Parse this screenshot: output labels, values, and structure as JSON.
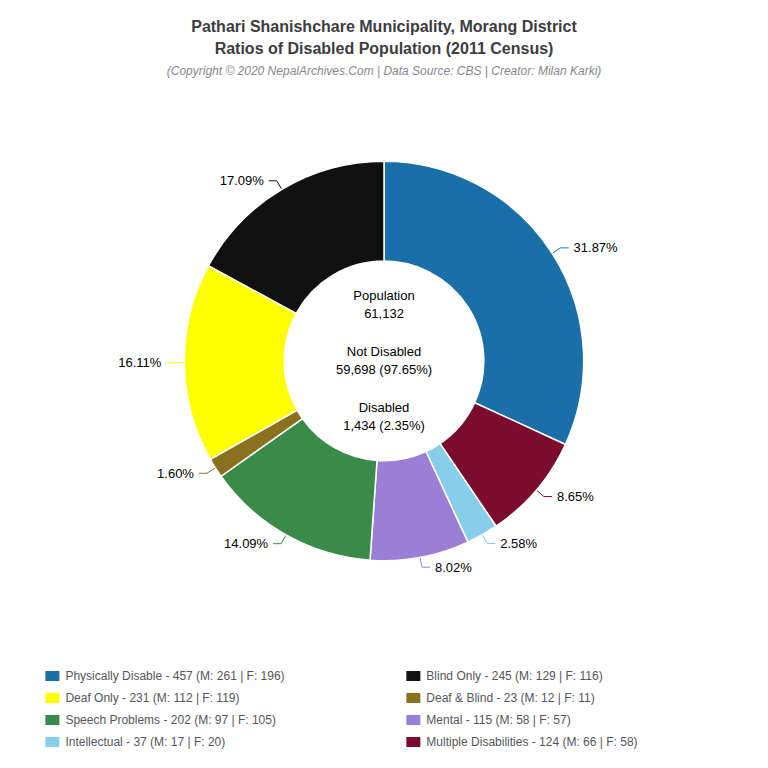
{
  "chart_data": {
    "type": "pie",
    "title": "Pathari Shanishchare Municipality, Morang District\nRatios of Disabled Population (2011 Census)",
    "subtitle": "(Copyright © 2020 NepalArchives.Com | Data Source: CBS | Creator: Milan Karki)",
    "categories": [
      "Physically Disable - 457 (M: 261 | F: 196)",
      "Multiple Disabilities - 124 (M: 66 | F: 58)",
      "Intellectual - 37 (M: 17 | F: 20)",
      "Mental - 115 (M: 58 | F: 57)",
      "Speech Problems - 202 (M: 97 | F: 105)",
      "Deaf & Blind - 23 (M: 12 | F: 11)",
      "Deaf Only - 231 (M: 112 | F: 119)",
      "Blind Only - 245 (M: 129 | F: 116)"
    ],
    "values": [
      31.87,
      8.65,
      2.58,
      8.02,
      14.09,
      1.6,
      16.11,
      17.09
    ],
    "value_labels": [
      "31.87%",
      "8.65%",
      "2.58%",
      "8.02%",
      "14.09%",
      "1.60%",
      "16.11%",
      "17.09%"
    ],
    "colors": [
      "#1a6fa8",
      "#7b0c2e",
      "#87ceeb",
      "#9b7fd4",
      "#3a8a4a",
      "#8b7020",
      "#ffff00",
      "#111111"
    ],
    "data_labels": true,
    "legend": "bottom",
    "legend_columns": [
      [
        "Physically Disable - 457 (M: 261 | F: 196)",
        "Deaf Only - 231 (M: 112 | F: 119)",
        "Speech Problems - 202 (M: 97 | F: 105)",
        "Intellectual - 37 (M: 17 | F: 20)"
      ],
      [
        "Blind Only - 245 (M: 129 | F: 116)",
        "Deaf & Blind - 23 (M: 12 | F: 11)",
        "Mental - 115 (M: 58 | F: 57)",
        "Multiple Disabilities - 124 (M: 66 | F: 58)"
      ]
    ],
    "annotations": [
      "Population\n61,132",
      "Not Disabled\n59,698 (97.65%)",
      "Disabled\n1,434 (2.35%)"
    ]
  }
}
